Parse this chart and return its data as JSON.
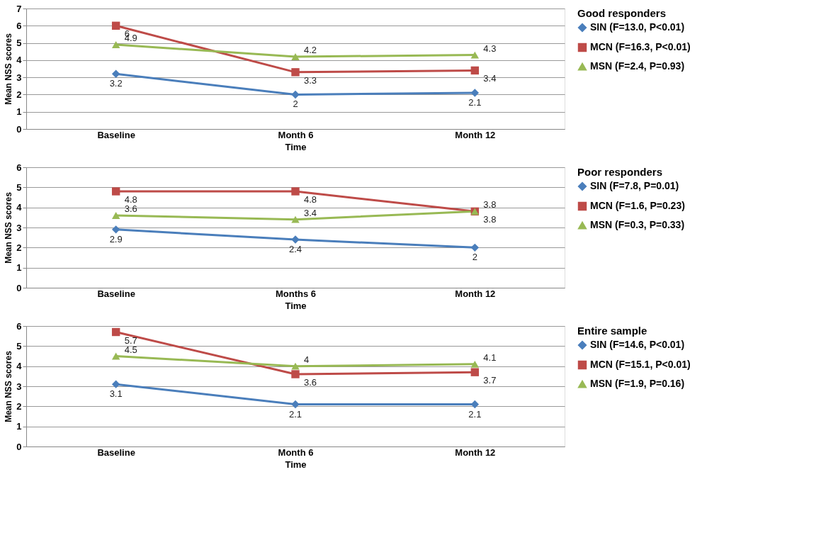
{
  "chart_data": [
    {
      "type": "line",
      "xlabel": "Time",
      "ylabel": "Mean NSS scores",
      "legend_title": "Good responders",
      "legend": "right",
      "grid": "y",
      "data_labels": true,
      "categories": [
        "Baseline",
        "Month 6",
        "Month 12"
      ],
      "ylim": [
        0,
        7
      ],
      "yticks": [
        0,
        1,
        2,
        3,
        4,
        5,
        6,
        7
      ],
      "series": [
        {
          "name": "SIN (F=13.0, P<0.01)",
          "color": "#4a7ebb",
          "marker": "diamond",
          "values": [
            3.2,
            2,
            2.1
          ]
        },
        {
          "name": "MCN (F=16.3, P<0.01)",
          "color": "#be4b48",
          "marker": "square",
          "values": [
            6,
            3.3,
            3.4
          ]
        },
        {
          "name": "MSN (F=2.4, P=0.93)",
          "color": "#98b954",
          "marker": "triangle",
          "values": [
            4.9,
            4.2,
            4.3
          ]
        }
      ]
    },
    {
      "type": "line",
      "xlabel": "Time",
      "ylabel": "Mean NSS scores",
      "legend_title": "Poor responders",
      "legend": "right",
      "grid": "y",
      "data_labels": true,
      "categories": [
        "Baseline",
        "Months 6",
        "Month 12"
      ],
      "ylim": [
        0,
        6
      ],
      "yticks": [
        0,
        1,
        2,
        3,
        4,
        5,
        6
      ],
      "series": [
        {
          "name": "SIN (F=7.8, P=0.01)",
          "color": "#4a7ebb",
          "marker": "diamond",
          "values": [
            2.9,
            2.4,
            2
          ]
        },
        {
          "name": "MCN (F=1.6, P=0.23)",
          "color": "#be4b48",
          "marker": "square",
          "values": [
            4.8,
            4.8,
            3.8
          ]
        },
        {
          "name": "MSN (F=0.3, P=0.33)",
          "color": "#98b954",
          "marker": "triangle",
          "values": [
            3.6,
            3.4,
            3.8
          ]
        }
      ]
    },
    {
      "type": "line",
      "xlabel": "Time",
      "ylabel": "Mean NSS scores",
      "legend_title": "Entire sample",
      "legend": "right",
      "grid": "y",
      "data_labels": true,
      "categories": [
        "Baseline",
        "Month 6",
        "Month 12"
      ],
      "ylim": [
        0,
        6
      ],
      "yticks": [
        0,
        1,
        2,
        3,
        4,
        5,
        6
      ],
      "series": [
        {
          "name": "SIN (F=14.6, P<0.01)",
          "color": "#4a7ebb",
          "marker": "diamond",
          "values": [
            3.1,
            2.1,
            2.1
          ]
        },
        {
          "name": "MCN (F=15.1, P<0.01)",
          "color": "#be4b48",
          "marker": "square",
          "values": [
            5.7,
            3.6,
            3.7
          ]
        },
        {
          "name": "MSN (F=1.9, P=0.16)",
          "color": "#98b954",
          "marker": "triangle",
          "values": [
            4.5,
            4,
            4.1
          ]
        }
      ]
    }
  ]
}
